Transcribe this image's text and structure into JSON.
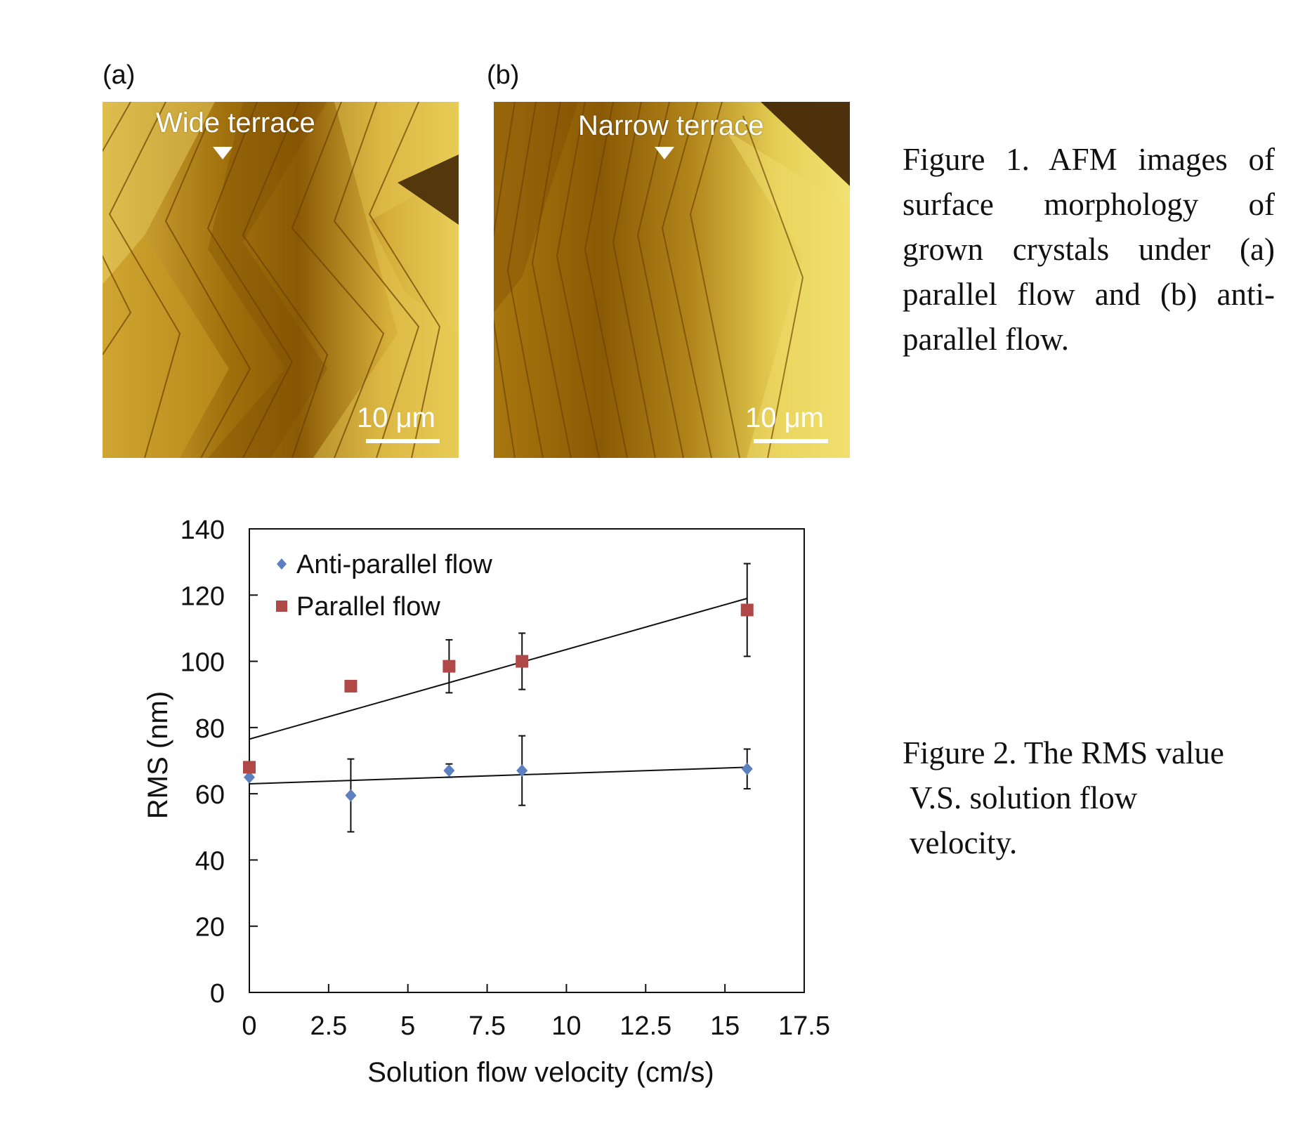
{
  "figure1": {
    "panel_a": {
      "label": "(a)",
      "title": "Wide terrace",
      "scale": "10 μm"
    },
    "panel_b": {
      "label": "(b)",
      "title": "Narrow terrace",
      "scale": "10 μm"
    },
    "caption": "Figure 1. AFM images of surface morphology of grown crystals under (a) parallel flow and (b) anti-parallel flow."
  },
  "figure2": {
    "caption_line1": "Figure 2. The RMS value",
    "caption_line2": "V.S. solution flow",
    "caption_line3": "velocity."
  },
  "chart_data": {
    "type": "scatter",
    "xlabel": "Solution flow velocity (cm/s)",
    "ylabel": "RMS (nm)",
    "xlim": [
      0,
      17.5
    ],
    "ylim": [
      0,
      140
    ],
    "x_ticks": [
      "0",
      "2.5",
      "5",
      "7.5",
      "10",
      "12.5",
      "15",
      "17.5"
    ],
    "y_ticks": [
      "0",
      "20",
      "40",
      "60",
      "80",
      "100",
      "120",
      "140"
    ],
    "legend_position": "top-left",
    "grid": false,
    "series": [
      {
        "name": "Anti-parallel flow",
        "marker": "diamond",
        "color": "#5b7fbf",
        "x": [
          0,
          3.2,
          6.3,
          8.6,
          15.7
        ],
        "y": [
          65,
          59.5,
          67,
          67,
          67.5
        ],
        "err": [
          0,
          11,
          2,
          10.5,
          6
        ],
        "trend": {
          "x": [
            0,
            15.7
          ],
          "y": [
            63,
            68
          ]
        }
      },
      {
        "name": "Parallel flow",
        "marker": "square",
        "color": "#b04848",
        "x": [
          0,
          3.2,
          6.3,
          8.6,
          15.7
        ],
        "y": [
          68,
          92.5,
          98.5,
          100,
          115.5
        ],
        "err": [
          0,
          0,
          8,
          8.5,
          14
        ],
        "trend": {
          "x": [
            0,
            15.7
          ],
          "y": [
            76.5,
            119
          ]
        }
      }
    ]
  }
}
